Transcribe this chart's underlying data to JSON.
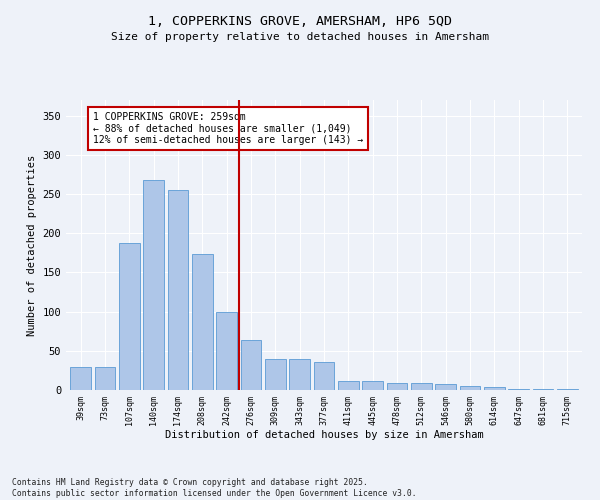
{
  "title1": "1, COPPERKINS GROVE, AMERSHAM, HP6 5QD",
  "title2": "Size of property relative to detached houses in Amersham",
  "xlabel": "Distribution of detached houses by size in Amersham",
  "ylabel": "Number of detached properties",
  "categories": [
    "39sqm",
    "73sqm",
    "107sqm",
    "140sqm",
    "174sqm",
    "208sqm",
    "242sqm",
    "276sqm",
    "309sqm",
    "343sqm",
    "377sqm",
    "411sqm",
    "445sqm",
    "478sqm",
    "512sqm",
    "546sqm",
    "580sqm",
    "614sqm",
    "647sqm",
    "681sqm",
    "715sqm"
  ],
  "values": [
    29,
    29,
    187,
    268,
    255,
    174,
    100,
    64,
    40,
    39,
    36,
    12,
    12,
    9,
    9,
    8,
    5,
    4,
    1,
    1,
    1
  ],
  "bar_color": "#aec6e8",
  "bar_edge_color": "#5b9bd5",
  "vline_x": 6.5,
  "vline_color": "#c00000",
  "annotation_text": "1 COPPERKINS GROVE: 259sqm\n← 88% of detached houses are smaller (1,049)\n12% of semi-detached houses are larger (143) →",
  "annotation_box_color": "#ffffff",
  "annotation_box_edge": "#c00000",
  "ylim": [
    0,
    370
  ],
  "yticks": [
    0,
    50,
    100,
    150,
    200,
    250,
    300,
    350
  ],
  "footer": "Contains HM Land Registry data © Crown copyright and database right 2025.\nContains public sector information licensed under the Open Government Licence v3.0.",
  "bg_color": "#eef2f9",
  "grid_color": "#ffffff"
}
